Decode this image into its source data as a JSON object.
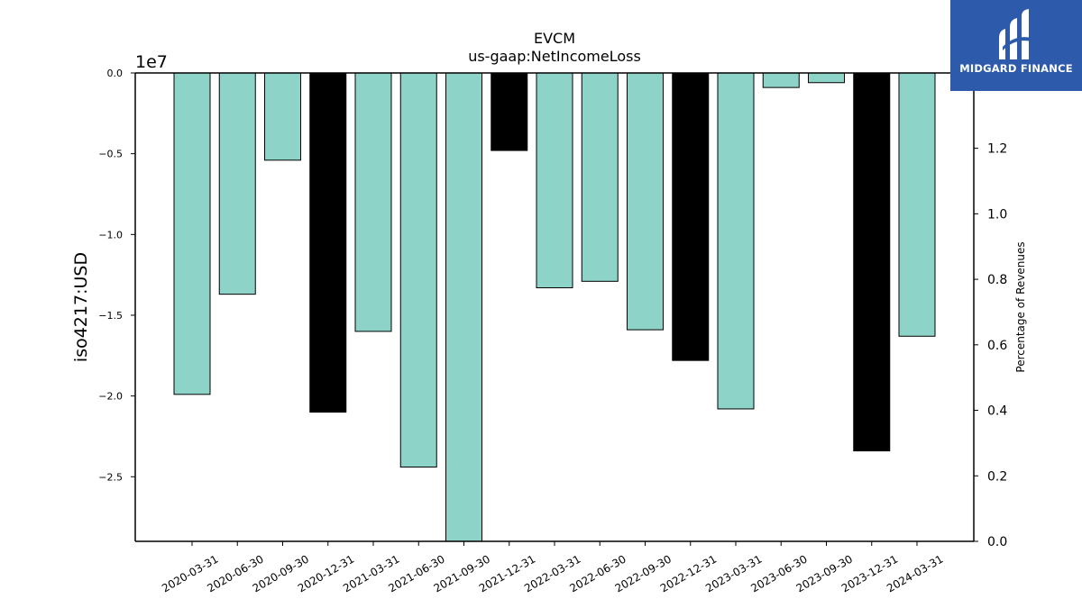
{
  "brand": {
    "name": "MIDGARD FINANCE",
    "background": "#2d5aab",
    "foreground": "#ffffff"
  },
  "colors": {
    "bar_default": "#8dd3c7",
    "bar_q4": "#000000"
  },
  "chart_data": {
    "type": "bar",
    "title": "EVCM",
    "subtitle": "us-gaap:NetIncomeLoss",
    "ylabel": "iso4217:USD",
    "y_offset_label": "1e7",
    "y2label": "Percentage of Revenues",
    "categories": [
      "2020-03-31",
      "2020-06-30",
      "2020-09-30",
      "2020-12-31",
      "2021-03-31",
      "2021-06-30",
      "2021-09-30",
      "2021-12-31",
      "2022-03-31",
      "2022-06-30",
      "2022-09-30",
      "2022-12-31",
      "2023-03-31",
      "2023-06-30",
      "2023-09-30",
      "2023-12-31",
      "2024-03-31"
    ],
    "values": [
      -19900000,
      -13700000,
      -5400000,
      -21000000,
      -16000000,
      -24400000,
      -29000000,
      -4800000,
      -13300000,
      -12900000,
      -15900000,
      -17800000,
      -20800000,
      -900000,
      -600000,
      -23400000,
      -16300000
    ],
    "highlight": [
      false,
      false,
      false,
      true,
      false,
      false,
      false,
      true,
      false,
      false,
      false,
      true,
      false,
      false,
      false,
      true,
      false
    ],
    "ylim": [
      -29000000,
      0
    ],
    "yticks": [
      0,
      -5000000,
      -10000000,
      -15000000,
      -20000000,
      -25000000
    ],
    "ytick_labels": [
      "0.0",
      "−0.5",
      "−1.0",
      "−1.5",
      "−2.0",
      "−2.5"
    ],
    "y2lim": [
      0,
      1.43
    ],
    "y2ticks": [
      0,
      0.2,
      0.4,
      0.6,
      0.8,
      1.0,
      1.2
    ],
    "y2tick_labels": [
      "0.0",
      "0.2",
      "0.4",
      "0.6",
      "0.8",
      "1.0",
      "1.2"
    ],
    "grid": false,
    "legend": "none"
  }
}
